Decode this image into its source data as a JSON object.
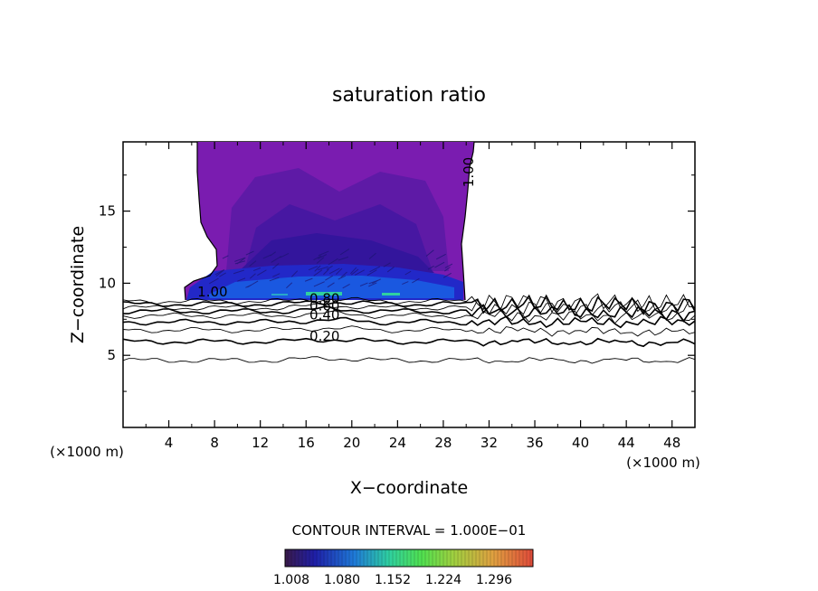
{
  "chart_data": {
    "type": "contour",
    "title": "saturation ratio",
    "xlabel": "X−coordinate",
    "ylabel": "Z−coordinate",
    "x_unit_left": "(×1000 m)",
    "x_unit_right": "(×1000 m)",
    "xlim": [
      0,
      50
    ],
    "ylim": [
      0,
      19.8
    ],
    "x_ticks": [
      4,
      8,
      12,
      16,
      20,
      24,
      28,
      32,
      36,
      40,
      44,
      48
    ],
    "y_ticks": [
      5,
      10,
      15
    ],
    "contour_interval_text": "CONTOUR INTERVAL = 1.000E−01",
    "colorbar": {
      "labels": [
        "1.008",
        "1.080",
        "1.152",
        "1.224",
        "1.296"
      ],
      "colors": [
        "#3a1a4a",
        "#1f1fa8",
        "#1f7ad8",
        "#2fd0a0",
        "#50e050",
        "#a0d040",
        "#e0a040",
        "#e04a3a"
      ]
    },
    "contour_labels": [
      {
        "text": "0.20",
        "x": 16.3,
        "y": 6.0
      },
      {
        "text": "0.40",
        "x": 16.3,
        "y": 7.5
      },
      {
        "text": "0.60",
        "x": 16.3,
        "y": 8.1
      },
      {
        "text": "0.80",
        "x": 16.3,
        "y": 8.6
      },
      {
        "text": "1.00",
        "x": 6.5,
        "y": 9.1
      },
      {
        "text": "1.00",
        "x": 30.6,
        "y": 17.7
      }
    ],
    "contour_levels": [
      {
        "level": 0.1,
        "base": 4.65
      },
      {
        "level": 0.2,
        "base": 5.95
      },
      {
        "level": 0.3,
        "base": 6.75
      },
      {
        "level": 0.4,
        "base": 7.3
      },
      {
        "level": 0.5,
        "base": 7.75
      },
      {
        "level": 0.6,
        "base": 8.05
      },
      {
        "level": 0.7,
        "base": 8.3
      },
      {
        "level": 0.8,
        "base": 8.55
      },
      {
        "level": 0.9,
        "base": 8.75
      }
    ]
  }
}
